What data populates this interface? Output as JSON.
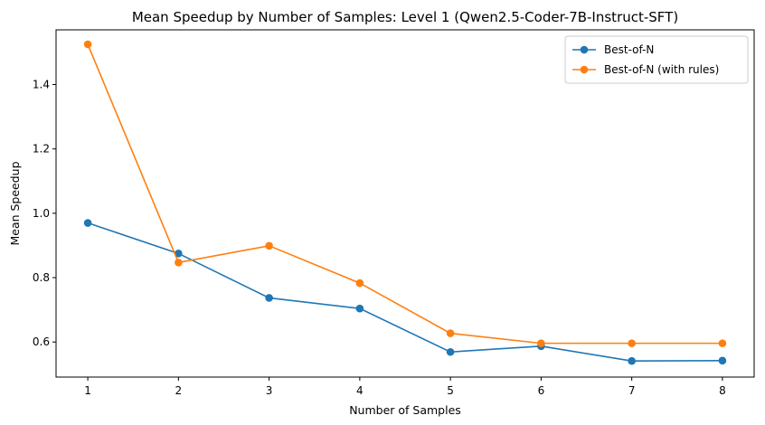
{
  "chart_data": {
    "type": "line",
    "title": "Mean Speedup by Number of Samples: Level 1 (Qwen2.5-Coder-7B-Instruct-SFT)",
    "xlabel": "Number of Samples",
    "ylabel": "Mean Speedup",
    "x": [
      1,
      2,
      3,
      4,
      5,
      6,
      7,
      8
    ],
    "xlim": [
      0.65,
      8.35
    ],
    "ylim": [
      0.491,
      1.57
    ],
    "xticks": [
      "1",
      "2",
      "3",
      "4",
      "5",
      "6",
      "7",
      "8"
    ],
    "yticks": [
      0.6,
      0.8,
      1.0,
      1.2,
      1.4
    ],
    "ytick_labels": [
      "0.6",
      "0.8",
      "1.0",
      "1.2",
      "1.4"
    ],
    "grid": false,
    "legend_position": "top-right",
    "series": [
      {
        "name": "Best-of-N",
        "color": "#1f77b4",
        "values": [
          0.97,
          0.875,
          0.737,
          0.704,
          0.569,
          0.587,
          0.541,
          0.542
        ]
      },
      {
        "name": "Best-of-N (with rules)",
        "color": "#ff7f0e",
        "values": [
          1.525,
          0.847,
          0.899,
          0.783,
          0.627,
          0.596,
          0.596,
          0.596
        ]
      }
    ]
  }
}
